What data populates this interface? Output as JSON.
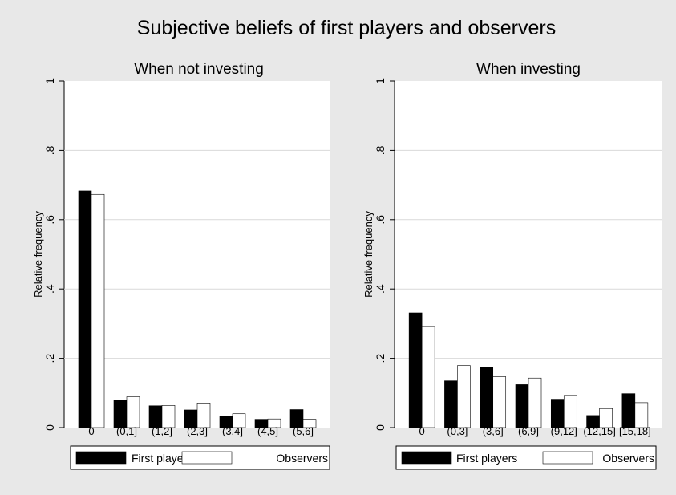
{
  "figure": {
    "title": "Subjective beliefs of first players and observers",
    "colors": {
      "background": "#e8e8e8",
      "plot_area": "#ffffff",
      "first_players": "#000000",
      "observers": "#ffffff",
      "gridline": "#d9d9d9"
    }
  },
  "chart_data": [
    {
      "type": "bar",
      "title": "When not investing",
      "ylabel": "Relative frequency",
      "xlabel": "",
      "ylim": [
        0,
        1
      ],
      "yticks": [
        "0",
        ".2",
        ".4",
        ".6",
        ".8",
        "1"
      ],
      "categories": [
        "0",
        "(0,1]",
        "(1,2]",
        "(2,3]",
        "(3.4]",
        "(4,5]",
        "(5,6]"
      ],
      "series": [
        {
          "name": "First players",
          "values": [
            0.683,
            0.078,
            0.063,
            0.051,
            0.033,
            0.024,
            0.052
          ]
        },
        {
          "name": "Observers",
          "values": [
            0.673,
            0.089,
            0.064,
            0.071,
            0.04,
            0.025,
            0.024
          ]
        }
      ],
      "grid": true,
      "legend": "bottom"
    },
    {
      "type": "bar",
      "title": "When investing",
      "ylabel": "Relative frequency",
      "xlabel": "",
      "ylim": [
        0,
        1
      ],
      "yticks": [
        "0",
        ".2",
        ".4",
        ".6",
        ".8",
        "1"
      ],
      "categories": [
        "0",
        "(0,3]",
        "(3,6]",
        "(6,9]",
        "(9,12]",
        "(12,15]",
        "[15,18]"
      ],
      "series": [
        {
          "name": "First players",
          "values": [
            0.331,
            0.135,
            0.173,
            0.124,
            0.082,
            0.035,
            0.098
          ]
        },
        {
          "name": "Observers",
          "values": [
            0.292,
            0.179,
            0.147,
            0.143,
            0.093,
            0.055,
            0.072
          ]
        }
      ],
      "grid": true,
      "legend": "bottom"
    }
  ]
}
